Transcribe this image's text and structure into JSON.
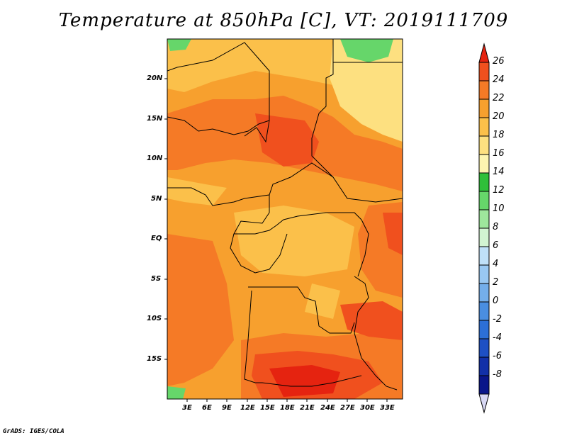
{
  "title": "Temperature at 850hPa [C], VT: 2019111709",
  "credit": "GrADS: IGES/COLA",
  "map": {
    "lon_range": [
      0,
      35
    ],
    "lat_range": [
      -20,
      25
    ],
    "x_ticks": [
      "3E",
      "6E",
      "9E",
      "12E",
      "15E",
      "18E",
      "21E",
      "24E",
      "27E",
      "30E",
      "33E"
    ],
    "y_ticks": [
      "20N",
      "15N",
      "10N",
      "5N",
      "EQ",
      "5S",
      "10S",
      "15S"
    ]
  },
  "colorbar": {
    "levels": [
      "26",
      "24",
      "22",
      "20",
      "18",
      "16",
      "14",
      "12",
      "10",
      "8",
      "6",
      "4",
      "2",
      "0",
      "-2",
      "-4",
      "-6",
      "-8"
    ],
    "colors": [
      "#e52310",
      "#f0501e",
      "#f57a26",
      "#f7a02e",
      "#fbc04a",
      "#fde080",
      "#fdf5b0",
      "#2fbf3a",
      "#66d66a",
      "#9ee69c",
      "#d2f4d2",
      "#bfe0f8",
      "#99c8f2",
      "#74aeea",
      "#4a8ee0",
      "#2c6fd6",
      "#1e50c4",
      "#1230a8",
      "#0a168a",
      "#d8d8f4"
    ]
  }
}
